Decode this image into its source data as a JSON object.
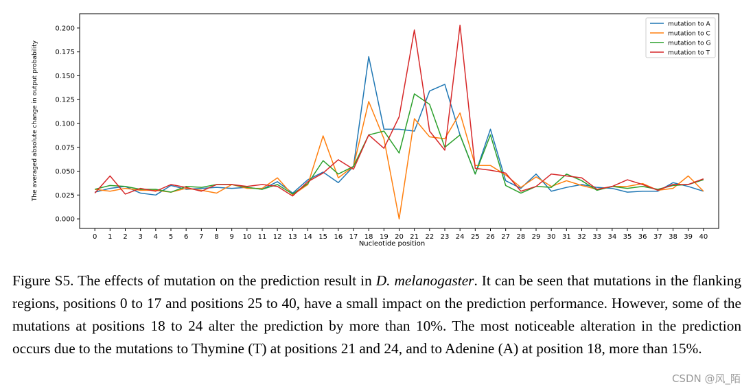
{
  "chart_data": {
    "type": "line",
    "title": "",
    "xlabel": "Nucleotide position",
    "ylabel": "The averaged absolute change in output probability",
    "xlim": [
      -1,
      41
    ],
    "ylim": [
      -0.01,
      0.215
    ],
    "x": [
      0,
      1,
      2,
      3,
      4,
      5,
      6,
      7,
      8,
      9,
      10,
      11,
      12,
      13,
      14,
      15,
      16,
      17,
      18,
      19,
      20,
      21,
      22,
      23,
      24,
      25,
      26,
      27,
      28,
      29,
      30,
      31,
      32,
      33,
      34,
      35,
      36,
      37,
      38,
      39,
      40
    ],
    "yticks": [
      0.0,
      0.025,
      0.05,
      0.075,
      0.1,
      0.125,
      0.15,
      0.175,
      0.2
    ],
    "ytick_labels": [
      "0.000",
      "0.025",
      "0.050",
      "0.075",
      "0.100",
      "0.125",
      "0.150",
      "0.175",
      "0.200"
    ],
    "legend_location": "top-right",
    "series": [
      {
        "name": "mutation to A",
        "color": "#1f77b4",
        "values": [
          0.028,
          0.032,
          0.034,
          0.027,
          0.025,
          0.035,
          0.031,
          0.032,
          0.033,
          0.032,
          0.033,
          0.031,
          0.039,
          0.027,
          0.041,
          0.049,
          0.038,
          0.055,
          0.17,
          0.094,
          0.094,
          0.092,
          0.134,
          0.141,
          0.088,
          0.047,
          0.094,
          0.04,
          0.032,
          0.047,
          0.029,
          0.033,
          0.036,
          0.033,
          0.032,
          0.028,
          0.029,
          0.029,
          0.038,
          0.034,
          0.029
        ]
      },
      {
        "name": "mutation to C",
        "color": "#ff7f0e",
        "values": [
          0.031,
          0.029,
          0.032,
          0.03,
          0.03,
          0.028,
          0.032,
          0.03,
          0.027,
          0.036,
          0.032,
          0.032,
          0.043,
          0.025,
          0.036,
          0.087,
          0.043,
          0.055,
          0.123,
          0.084,
          0.0,
          0.105,
          0.086,
          0.084,
          0.111,
          0.056,
          0.056,
          0.046,
          0.033,
          0.044,
          0.034,
          0.04,
          0.035,
          0.031,
          0.034,
          0.034,
          0.037,
          0.03,
          0.032,
          0.045,
          0.029
        ]
      },
      {
        "name": "mutation to G",
        "color": "#2ca02c",
        "values": [
          0.031,
          0.035,
          0.034,
          0.031,
          0.031,
          0.028,
          0.034,
          0.033,
          0.036,
          0.036,
          0.033,
          0.031,
          0.036,
          0.026,
          0.037,
          0.061,
          0.047,
          0.055,
          0.088,
          0.092,
          0.069,
          0.131,
          0.12,
          0.075,
          0.088,
          0.047,
          0.088,
          0.035,
          0.027,
          0.034,
          0.033,
          0.047,
          0.04,
          0.03,
          0.034,
          0.032,
          0.034,
          0.031,
          0.035,
          0.036,
          0.041
        ]
      },
      {
        "name": "mutation to T",
        "color": "#d62728",
        "values": [
          0.027,
          0.045,
          0.026,
          0.032,
          0.029,
          0.036,
          0.033,
          0.029,
          0.036,
          0.036,
          0.034,
          0.036,
          0.034,
          0.024,
          0.039,
          0.048,
          0.062,
          0.052,
          0.088,
          0.074,
          0.107,
          0.198,
          0.092,
          0.072,
          0.203,
          0.053,
          0.051,
          0.048,
          0.029,
          0.034,
          0.047,
          0.045,
          0.043,
          0.031,
          0.034,
          0.041,
          0.036,
          0.03,
          0.036,
          0.036,
          0.042
        ]
      }
    ]
  },
  "caption": {
    "label": "Figure S5.",
    "part1": " The effects of mutation on the prediction result in ",
    "species": "D. melanogaster",
    "part2": ". It can be seen that mutations in the flanking regions, positions 0 to 17 and positions 25 to 40, have a small impact on the prediction performance. However, some of the mutations at positions 18 to 24 alter the prediction by more than 10%. The most noticeable alteration in the prediction occurs due to the mutations to Thymine (T) at positions 21 and 24, and to Adenine (A) at position 18, more than 15%."
  },
  "watermark": "CSDN @风_陌"
}
